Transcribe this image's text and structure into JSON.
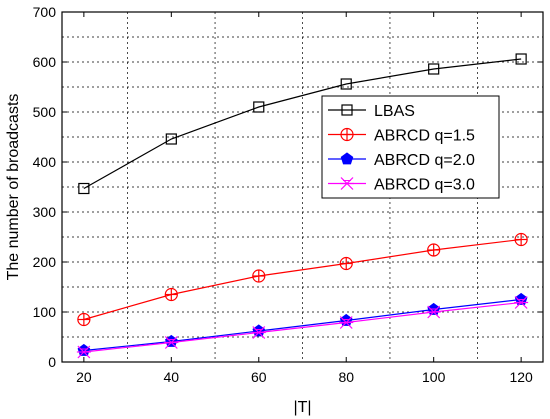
{
  "chart_data": {
    "type": "line",
    "xlabel": "|T|",
    "ylabel": "The number of broadcasts",
    "xlim": [
      15,
      125
    ],
    "ylim": [
      0,
      700
    ],
    "xticks": [
      "20",
      "40",
      "60",
      "80",
      "100",
      "120"
    ],
    "yticks": [
      "0",
      "100",
      "200",
      "300",
      "400",
      "500",
      "600",
      "700"
    ],
    "grid": true,
    "legend_position": "right-middle",
    "x": [
      20,
      40,
      60,
      80,
      100,
      120
    ],
    "series": [
      {
        "name": "LBAS",
        "values": [
          347,
          446,
          510,
          556,
          586,
          606
        ],
        "color": "#000000",
        "marker": "square"
      },
      {
        "name": "ABRCD q=1.5",
        "values": [
          85,
          135,
          172,
          197,
          224,
          245
        ],
        "color": "#ff0000",
        "marker": "circle-plus"
      },
      {
        "name": "ABRCD q=2.0",
        "values": [
          23,
          41,
          62,
          83,
          105,
          125
        ],
        "color": "#0000ff",
        "marker": "pentagon"
      },
      {
        "name": "ABRCD q=3.0",
        "values": [
          20,
          39,
          59,
          79,
          100,
          119
        ],
        "color": "#ff00ff",
        "marker": "x-star"
      }
    ]
  }
}
